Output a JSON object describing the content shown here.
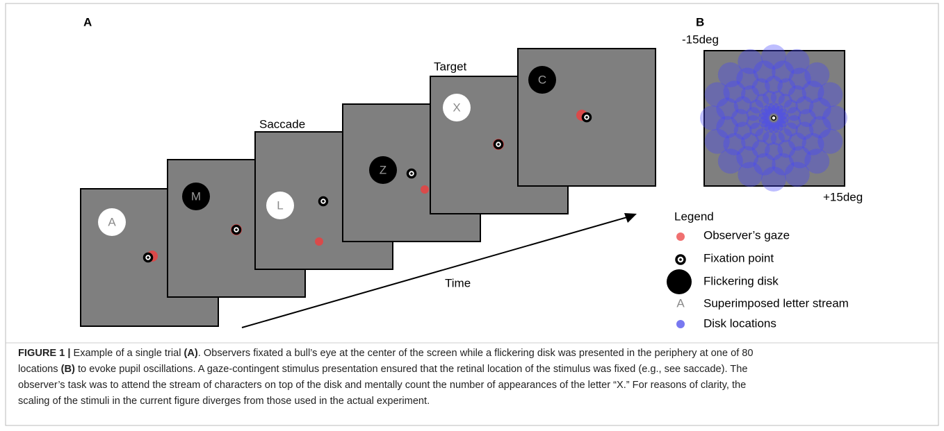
{
  "panel_a": {
    "label": "A",
    "screens": [
      {
        "letter": "A",
        "disk": "white",
        "letter_color": "#8a8a8a"
      },
      {
        "letter": "M",
        "disk": "black",
        "letter_color": "#9a9a9a"
      },
      {
        "letter": "L",
        "disk": "white",
        "letter_color": "#8a8a8a"
      },
      {
        "letter": "Z",
        "disk": "black",
        "letter_color": "#9a9a9a"
      },
      {
        "letter": "X",
        "disk": "white",
        "letter_color": "#8a8a8a"
      },
      {
        "letter": "C",
        "disk": "black",
        "letter_color": "#9a9a9a"
      }
    ],
    "saccade_label": "Saccade",
    "target_label": "Target",
    "time_label": "Time"
  },
  "panel_b": {
    "label": "B",
    "top_label": "-15deg",
    "bottom_label": "+15deg"
  },
  "legend": {
    "title": "Legend",
    "items": [
      "Observer’s gaze",
      "Fixation point",
      "Flickering disk",
      "Superimposed letter stream",
      "Disk locations"
    ],
    "letter_symbol": "A"
  },
  "caption": {
    "lines": [
      [
        {
          "text": "FIGURE 1 | ",
          "bold": true
        },
        {
          "text": "Example of a single trial ",
          "bold": false
        },
        {
          "text": "(A)",
          "bold": true
        },
        {
          "text": ". Observers fixated a bull’s eye at the center of the screen while a flickering disk was presented in the periphery at one of 80",
          "bold": false
        }
      ],
      [
        {
          "text": "locations ",
          "bold": false
        },
        {
          "text": "(B)",
          "bold": true
        },
        {
          "text": " to evoke pupil oscillations. A gaze-contingent stimulus presentation ensured that the retinal location of the stimulus was fixed (e.g., see saccade). The",
          "bold": false
        }
      ],
      [
        {
          "text": "observer’s task was to attend the stream of characters on top of the disk and mentally count the number of appearances of the letter “X.” For reasons of clarity, the",
          "bold": false
        }
      ],
      [
        {
          "text": "scaling of the stimuli in the current figure diverges from those used in the actual experiment.",
          "bold": false
        }
      ]
    ]
  }
}
